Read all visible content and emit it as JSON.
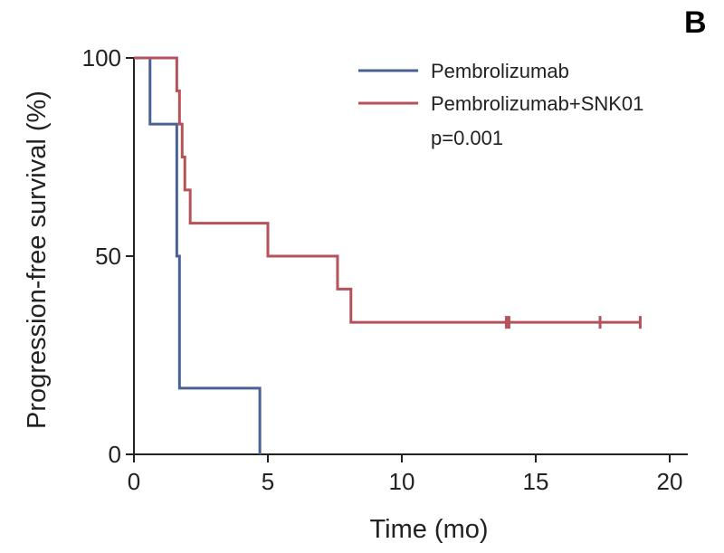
{
  "panel_label": "B",
  "chart_data": {
    "type": "line",
    "subtype": "kaplan-meier step",
    "xlabel": "Time (mo)",
    "ylabel": "Progression-free survival (%)",
    "xlim": [
      0,
      21
    ],
    "ylim": [
      0,
      100
    ],
    "xticks": [
      0,
      5,
      10,
      15,
      20
    ],
    "yticks": [
      0,
      50,
      100
    ],
    "grid": false,
    "legend_position": "top-right",
    "annotation": "p=0.001",
    "series": [
      {
        "name": "Pembrolizumab",
        "color": "#4a6196",
        "steps": [
          [
            0,
            100
          ],
          [
            0.6,
            83.3
          ],
          [
            1.6,
            50
          ],
          [
            1.7,
            33.3
          ],
          [
            1.7,
            16.7
          ],
          [
            4.7,
            0
          ]
        ],
        "censored": []
      },
      {
        "name": "Pembrolizumab+SNK01",
        "color": "#b5525a",
        "steps": [
          [
            0,
            100
          ],
          [
            1.6,
            91.7
          ],
          [
            1.7,
            83.3
          ],
          [
            1.8,
            75
          ],
          [
            1.9,
            66.7
          ],
          [
            2.1,
            58.3
          ],
          [
            5.0,
            50
          ],
          [
            7.6,
            41.7
          ],
          [
            8.1,
            33.3
          ]
        ],
        "end_time": 18.9,
        "censored": [
          [
            13.9,
            33.3
          ],
          [
            14.0,
            33.3
          ],
          [
            17.4,
            33.3
          ],
          [
            18.9,
            33.3
          ]
        ]
      }
    ]
  }
}
